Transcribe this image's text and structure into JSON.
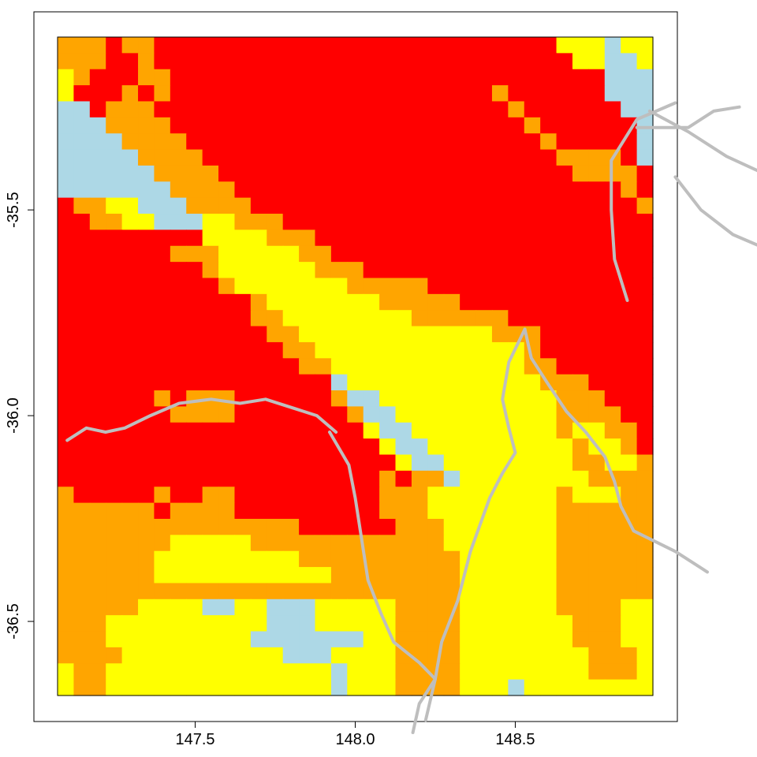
{
  "map": {
    "x_axis": {
      "min": 147.07,
      "max": 148.93,
      "ticks": [
        "147.5",
        "148.0",
        "148.5"
      ],
      "tick_values": [
        147.5,
        148.0,
        148.5
      ]
    },
    "y_axis": {
      "min": -36.68,
      "max": -35.08,
      "ticks": [
        "-35.5",
        "-36.0",
        "-36.5"
      ],
      "tick_values": [
        -35.5,
        -36.0,
        -36.5
      ]
    },
    "grid": {
      "cols": 37,
      "rows": 41
    },
    "legend": "none",
    "colors": {
      "R": "#ff0000",
      "O": "#ffa500",
      "Y": "#ffff00",
      "B": "#add8e6",
      "boundary": "#bebebe",
      "frame": "#000000",
      "background": "#ffffff"
    },
    "raster_rows": [
      "OOOROORRRRRRRRRRRRRRRRRRRRRRRRRYYYBYY",
      "OOORRORRRRRRRRRRRRRRRRRRRRRRRRRRYYBBY",
      "YORRROORRRRRRRRRRRRRRRRRRRRRRRRRRRBBB",
      "YRRRORORRRRRRRRRRRRRRRRRRRRORRRRRRBBB",
      "BBROOORRRRRRRRRRRRRRRRRRRRRRORRRRRRBB",
      "BBBOOOORRRRRRRRRRRRRRRRRRRRRRORRRRRRB",
      "BBBBOOOORRRRRRRRRRRRRRRRRRRRRRORRRRRB",
      "BBBBBOOOORRRRRRRRRRRRRRRRRRRRRROOOORB",
      "BBBBBBOOOORRRRRRRRRRRRRRRRRRRRRROOOOR",
      "BBBBBBBOOOORRRRRRRRRRRRRRRRRRRRRRRROR",
      "ROOYYBBBOOOORRRRRRRRRRRRRRRRRRRRRRRRO",
      "RROOYYBBBYYOOORRRRRRRRRRRRRRRRRRRRRRR",
      "RRRRRRRRRYYYYOOORRRRRRRRRRRRRRRRRRRRR",
      "RRRRRRROOOYYYYYOORRRRRRRRRRRRRRRRRRRR",
      "RRRRRRRRROYYYYYYOOORRRRRRRRRRRRRRRRRR",
      "RRRRRRRRRROYYYYYYYOOOOORRRRRRRRRRRRRR",
      "RRRRRRRRRRRROYYYYYYYOOOOORRRRRRRRRRRR",
      "RRRRRRRRRRRROOYYYYYYYYOOOOOORRRRRRRRR",
      "RRRRRRRRRRRRROOYYYYYYYYYYYYOOORRRRRRR",
      "RRRRRRRRRRRRRROOYYYYYYYYYYYYYORRRRRRR",
      "RRRRRRRRRRRRRRROOYYYYYYYYYYYYOORRRRRR",
      "RRRRRRRRRRRRRRRRRBYYYYYYYYYYYYOOORRRR",
      "RRRRRROROOORRRRRROBBYYYYYYYYYYYOOORRR",
      "RRRRRRROOOORRRRRRROBBYYYYYYYYYYOOOORR",
      "RRRRRRRRRRRRRRRRRRRYBBYYYYYYYYYOYYOOR",
      "RRRRRRRRRRRRRRRRRRRRYBBYYYYYYYYYOYYOR",
      "RRRRRRRRRRRRRRRRRRRRRYBBYYYYYYYYOOYYO",
      "RRRRRRRRRRRRRRRRRRRROROOBYYYYYYYYOOOO",
      "ORRRRRORROORRRRRRRRROOOYYYYYYYYOYYYOO",
      "OOOOOOROOOORRRRRRRRROOOYYYYYYYYOOOOOO",
      "OOOOOOOOOOOOOOORRRRRROOOYYYYYYYOOOOOO",
      "OOOOOOOYYYYYOOOOOOOOOOOOYYYYYYYOOOOOO",
      "OOOOOOYYYYYYYYYOOOOOOOOOOYYYYYYOOOOOO",
      "OOOOOOYYYYYYYYYYYOOOOOOOOYYYYYYOOOOOO",
      "OOOOOOOOOOOOOOOOOOOOOOOOOYYYYYYOOOOOO",
      "OOOOOYYYYBBYYBBBYYYYYOOOOYYYYYYOOOOYY",
      "OOOYYYYYYYYYYBBBYYYYYOOOOYYYYYYYOOOYY",
      "OOOYYYYYYYYYBBBBBBBYYOOOOYYYYYYYOOOYY",
      "OOOOYYYYYYYYYYBBBYYYYOOOOYYYYYYYYOOOY",
      "YOOYYYYYYYYYYYYYYBYYYOOOOYYYYYYYYOOOY",
      "YOOYYYYYYYYYYYYYYBYYYOOOOYYYBYYYYYYYY"
    ],
    "boundaries": [
      [
        [
          147.1,
          -36.06
        ],
        [
          147.16,
          -36.03
        ],
        [
          147.22,
          -36.04
        ],
        [
          147.28,
          -36.03
        ],
        [
          147.36,
          -36.0
        ],
        [
          147.45,
          -35.97
        ],
        [
          147.55,
          -35.96
        ],
        [
          147.64,
          -35.97
        ],
        [
          147.72,
          -35.96
        ],
        [
          147.8,
          -35.98
        ],
        [
          147.88,
          -36.0
        ],
        [
          147.94,
          -36.04
        ]
      ],
      [
        [
          148.53,
          -35.79
        ],
        [
          148.55,
          -35.86
        ],
        [
          148.6,
          -35.92
        ],
        [
          148.66,
          -35.99
        ],
        [
          148.72,
          -36.04
        ],
        [
          148.78,
          -36.1
        ],
        [
          148.81,
          -36.16
        ],
        [
          148.83,
          -36.22
        ],
        [
          148.87,
          -36.28
        ],
        [
          149.0,
          -36.33
        ],
        [
          149.1,
          -36.38
        ]
      ],
      [
        [
          147.92,
          -36.04
        ],
        [
          147.98,
          -36.12
        ],
        [
          148.0,
          -36.2
        ],
        [
          148.02,
          -36.3
        ],
        [
          148.04,
          -36.4
        ],
        [
          148.08,
          -36.48
        ],
        [
          148.12,
          -36.55
        ],
        [
          148.2,
          -36.6
        ],
        [
          148.25,
          -36.64
        ],
        [
          148.22,
          -36.74
        ]
      ],
      [
        [
          148.53,
          -35.79
        ],
        [
          148.48,
          -35.87
        ],
        [
          148.46,
          -35.96
        ],
        [
          148.48,
          -36.03
        ],
        [
          148.5,
          -36.09
        ],
        [
          148.46,
          -36.14
        ],
        [
          148.42,
          -36.2
        ],
        [
          148.36,
          -36.33
        ],
        [
          148.32,
          -36.45
        ],
        [
          148.27,
          -36.55
        ],
        [
          148.25,
          -36.64
        ],
        [
          148.2,
          -36.7
        ],
        [
          148.18,
          -36.77
        ]
      ],
      [
        [
          148.85,
          -35.72
        ],
        [
          148.81,
          -35.62
        ],
        [
          148.8,
          -35.5
        ],
        [
          148.8,
          -35.38
        ],
        [
          148.88,
          -35.28
        ],
        [
          149.0,
          -35.24
        ]
      ],
      [
        [
          148.92,
          -35.26
        ],
        [
          149.04,
          -35.31
        ],
        [
          149.16,
          -35.37
        ],
        [
          149.3,
          -35.42
        ]
      ],
      [
        [
          149.0,
          -35.42
        ],
        [
          149.08,
          -35.5
        ],
        [
          149.18,
          -35.56
        ],
        [
          149.3,
          -35.6
        ]
      ],
      [
        [
          148.88,
          -35.3
        ],
        [
          149.04,
          -35.3
        ],
        [
          149.12,
          -35.26
        ],
        [
          149.2,
          -35.25
        ]
      ]
    ]
  }
}
